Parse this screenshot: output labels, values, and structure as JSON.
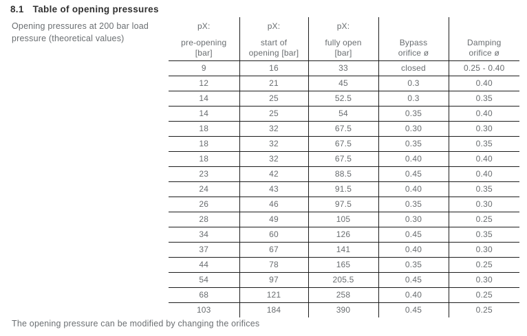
{
  "heading": {
    "number": "8.1",
    "title": "Table of opening pressures"
  },
  "intro": {
    "line1": "Opening pressures at 200 bar load",
    "line2": "pressure (theoretical values)"
  },
  "table": {
    "columns": [
      {
        "top": "pX:",
        "label1": "pre-opening",
        "label2": "[bar]"
      },
      {
        "top": "pX:",
        "label1": "start of",
        "label2": "opening [bar]"
      },
      {
        "top": "pX:",
        "label1": "fully open",
        "label2": "[bar]"
      },
      {
        "top": "",
        "label1": "Bypass",
        "label2": "orifice ø"
      },
      {
        "top": "",
        "label1": "Damping",
        "label2": "orifice ø"
      }
    ],
    "rows": [
      [
        "9",
        "16",
        "33",
        "closed",
        "0.25 - 0.40"
      ],
      [
        "12",
        "21",
        "45",
        "0.3",
        "0.40"
      ],
      [
        "14",
        "25",
        "52.5",
        "0.3",
        "0.35"
      ],
      [
        "14",
        "25",
        "54",
        "0.35",
        "0.40"
      ],
      [
        "18",
        "32",
        "67.5",
        "0.30",
        "0.30"
      ],
      [
        "18",
        "32",
        "67.5",
        "0.35",
        "0.35"
      ],
      [
        "18",
        "32",
        "67.5",
        "0.40",
        "0.40"
      ],
      [
        "23",
        "42",
        "88.5",
        "0.45",
        "0.40"
      ],
      [
        "24",
        "43",
        "91.5",
        "0.40",
        "0.35"
      ],
      [
        "26",
        "46",
        "97.5",
        "0.35",
        "0.30"
      ],
      [
        "28",
        "49",
        "105",
        "0.30",
        "0.25"
      ],
      [
        "34",
        "60",
        "126",
        "0.45",
        "0.35"
      ],
      [
        "37",
        "67",
        "141",
        "0.40",
        "0.30"
      ],
      [
        "44",
        "78",
        "165",
        "0.35",
        "0.25"
      ],
      [
        "54",
        "97",
        "205.5",
        "0.45",
        "0.30"
      ],
      [
        "68",
        "121",
        "258",
        "0.40",
        "0.25"
      ],
      [
        "103",
        "184",
        "390",
        "0.45",
        "0.25"
      ]
    ]
  },
  "footer": "The opening pressure can be modified by changing the orifices"
}
